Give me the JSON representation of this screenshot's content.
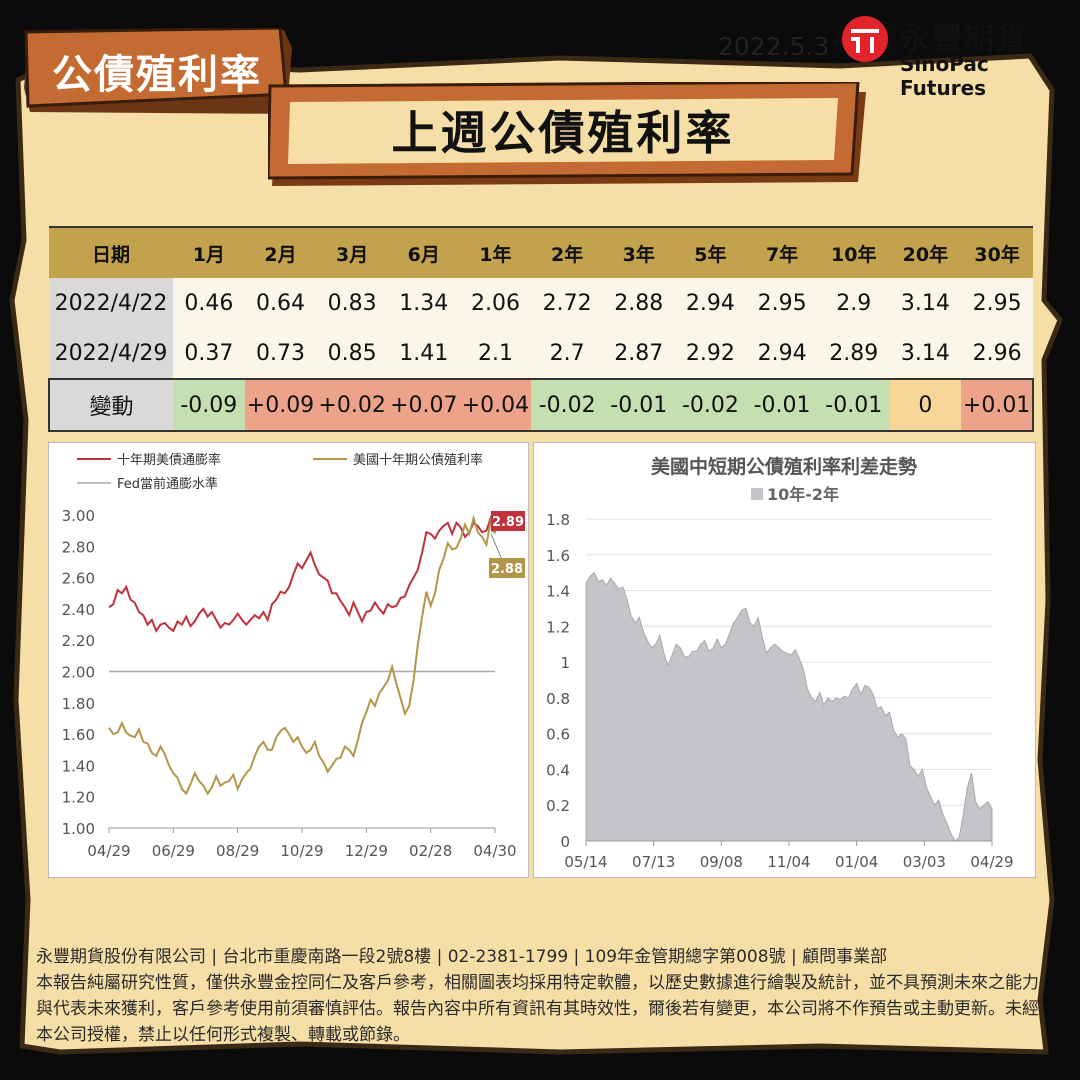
{
  "header": {
    "tag": "公債殖利率",
    "date": "2022.5.3",
    "logo_name": "永豐期貨",
    "logo_en": "SinoPac Futures",
    "banner": "上週公債殖利率"
  },
  "table": {
    "columns": [
      "日期",
      "1月",
      "2月",
      "3月",
      "6月",
      "1年",
      "2年",
      "3年",
      "5年",
      "7年",
      "10年",
      "20年",
      "30年"
    ],
    "rows": [
      {
        "label": "2022/4/22",
        "values": [
          "0.46",
          "0.64",
          "0.83",
          "1.34",
          "2.06",
          "2.72",
          "2.88",
          "2.94",
          "2.95",
          "2.9",
          "3.14",
          "2.95"
        ]
      },
      {
        "label": "2022/4/29",
        "values": [
          "0.37",
          "0.73",
          "0.85",
          "1.41",
          "2.1",
          "2.7",
          "2.87",
          "2.92",
          "2.94",
          "2.89",
          "3.14",
          "2.96"
        ]
      }
    ],
    "change": {
      "label": "變動",
      "values": [
        "-0.09",
        "+0.09",
        "+0.02",
        "+0.07",
        "+0.04",
        "-0.02",
        "-0.01",
        "-0.02",
        "-0.01",
        "-0.01",
        "0",
        "+0.01"
      ]
    }
  },
  "chart_data": [
    {
      "type": "line",
      "legend": [
        "十年期美債通膨率",
        "美國十年期公債殖利率",
        "Fed當前通膨水準"
      ],
      "x_ticks": [
        "04/29",
        "06/29",
        "08/29",
        "10/29",
        "12/29",
        "02/28",
        "04/30"
      ],
      "ylim": [
        1.0,
        3.0
      ],
      "y_ticks": [
        "3.00",
        "2.80",
        "2.60",
        "2.40",
        "2.20",
        "2.00",
        "1.80",
        "1.60",
        "1.40",
        "1.20",
        "1.00"
      ],
      "series": [
        {
          "name": "十年期美債通膨率",
          "color": "#c0323b",
          "end_label": "2.89",
          "values": [
            2.41,
            2.43,
            2.52,
            2.5,
            2.54,
            2.46,
            2.44,
            2.38,
            2.36,
            2.3,
            2.33,
            2.26,
            2.3,
            2.31,
            2.28,
            2.26,
            2.32,
            2.3,
            2.35,
            2.29,
            2.32,
            2.37,
            2.4,
            2.35,
            2.38,
            2.33,
            2.28,
            2.31,
            2.3,
            2.33,
            2.37,
            2.33,
            2.3,
            2.33,
            2.36,
            2.34,
            2.38,
            2.33,
            2.43,
            2.46,
            2.51,
            2.5,
            2.54,
            2.62,
            2.69,
            2.66,
            2.71,
            2.76,
            2.68,
            2.62,
            2.6,
            2.58,
            2.5,
            2.5,
            2.45,
            2.41,
            2.36,
            2.44,
            2.38,
            2.32,
            2.38,
            2.39,
            2.44,
            2.4,
            2.37,
            2.43,
            2.41,
            2.42,
            2.47,
            2.48,
            2.55,
            2.6,
            2.65,
            2.76,
            2.89,
            2.88,
            2.85,
            2.9,
            2.93,
            2.95,
            2.88,
            2.95,
            2.92,
            2.86,
            2.89,
            2.95,
            2.93,
            2.89,
            2.9,
            2.98,
            2.89
          ]
        },
        {
          "name": "美國十年期公債殖利率",
          "color": "#b39648",
          "end_label": "2.88",
          "values": [
            1.64,
            1.6,
            1.61,
            1.67,
            1.61,
            1.59,
            1.58,
            1.63,
            1.55,
            1.54,
            1.48,
            1.46,
            1.52,
            1.47,
            1.4,
            1.35,
            1.32,
            1.25,
            1.22,
            1.28,
            1.35,
            1.3,
            1.27,
            1.22,
            1.26,
            1.33,
            1.27,
            1.29,
            1.3,
            1.34,
            1.25,
            1.31,
            1.35,
            1.38,
            1.46,
            1.52,
            1.55,
            1.5,
            1.5,
            1.58,
            1.62,
            1.64,
            1.6,
            1.55,
            1.58,
            1.52,
            1.48,
            1.5,
            1.55,
            1.46,
            1.42,
            1.36,
            1.4,
            1.44,
            1.45,
            1.52,
            1.5,
            1.46,
            1.56,
            1.67,
            1.74,
            1.82,
            1.78,
            1.86,
            1.9,
            1.94,
            2.03,
            1.92,
            1.83,
            1.73,
            1.78,
            1.94,
            2.17,
            2.35,
            2.51,
            2.42,
            2.5,
            2.65,
            2.72,
            2.82,
            2.78,
            2.79,
            2.85,
            2.94,
            2.88,
            2.98,
            2.89,
            2.86,
            2.81,
            2.96,
            2.88
          ]
        },
        {
          "name": "Fed當前通膨水準",
          "color": "#a8a8a8",
          "values": [
            2.0,
            2.0
          ]
        }
      ]
    },
    {
      "type": "area",
      "title": "美國中短期公債殖利率利差走勢",
      "legend": [
        "10年-2年"
      ],
      "x_ticks": [
        "05/14",
        "07/13",
        "09/08",
        "11/04",
        "01/04",
        "03/03",
        "04/29"
      ],
      "ylim": [
        0,
        1.8
      ],
      "y_ticks": [
        "1.8",
        "1.6",
        "1.4",
        "1.2",
        "1",
        "0.8",
        "0.6",
        "0.4",
        "0.2",
        "0"
      ],
      "series": [
        {
          "name": "10年-2年",
          "color": "#c4c5c9",
          "values": [
            1.44,
            1.48,
            1.5,
            1.45,
            1.46,
            1.43,
            1.47,
            1.44,
            1.41,
            1.42,
            1.35,
            1.26,
            1.22,
            1.25,
            1.17,
            1.12,
            1.08,
            1.1,
            1.15,
            1.05,
            0.98,
            1.04,
            1.1,
            1.08,
            1.03,
            1.03,
            1.06,
            1.06,
            1.1,
            1.12,
            1.06,
            1.08,
            1.13,
            1.08,
            1.1,
            1.16,
            1.22,
            1.25,
            1.29,
            1.3,
            1.22,
            1.2,
            1.25,
            1.14,
            1.05,
            1.08,
            1.1,
            1.08,
            1.06,
            1.05,
            1.04,
            1.07,
            1.02,
            0.96,
            0.85,
            0.8,
            0.78,
            0.83,
            0.76,
            0.8,
            0.78,
            0.8,
            0.79,
            0.81,
            0.8,
            0.85,
            0.88,
            0.82,
            0.87,
            0.86,
            0.82,
            0.74,
            0.75,
            0.7,
            0.72,
            0.62,
            0.58,
            0.6,
            0.57,
            0.42,
            0.4,
            0.36,
            0.4,
            0.3,
            0.25,
            0.2,
            0.23,
            0.15,
            0.1,
            0.04,
            0.0,
            0.02,
            0.15,
            0.3,
            0.38,
            0.22,
            0.18,
            0.2,
            0.22,
            0.18
          ]
        }
      ]
    }
  ],
  "footer": {
    "company": "永豐期貨股份有限公司 | 台北市重慶南路一段2號8樓 | 02-2381-1799 | 109年金管期總字第008號 | 顧問事業部",
    "disclaimer": "本報告純屬研究性質，僅供永豐金控同仁及客戶參考，相關圖表均採用特定軟體，以歷史數據進行繪製及統計，並不具預測未來之能力與代表未來獲利，客戶參考使用前須審慎評估。報告內容中所有資訊有其時效性，爾後若有變更，本公司將不作預告或主動更新。未經本公司授權，禁止以任何形式複製、轉載或節錄。"
  },
  "colors": {
    "gold": "#c3a24e",
    "parchment": "#f6dea7",
    "wood": "#c46b33",
    "neg": "#c4dfb0",
    "pos": "#eda38a",
    "zero": "#f8d69a"
  }
}
